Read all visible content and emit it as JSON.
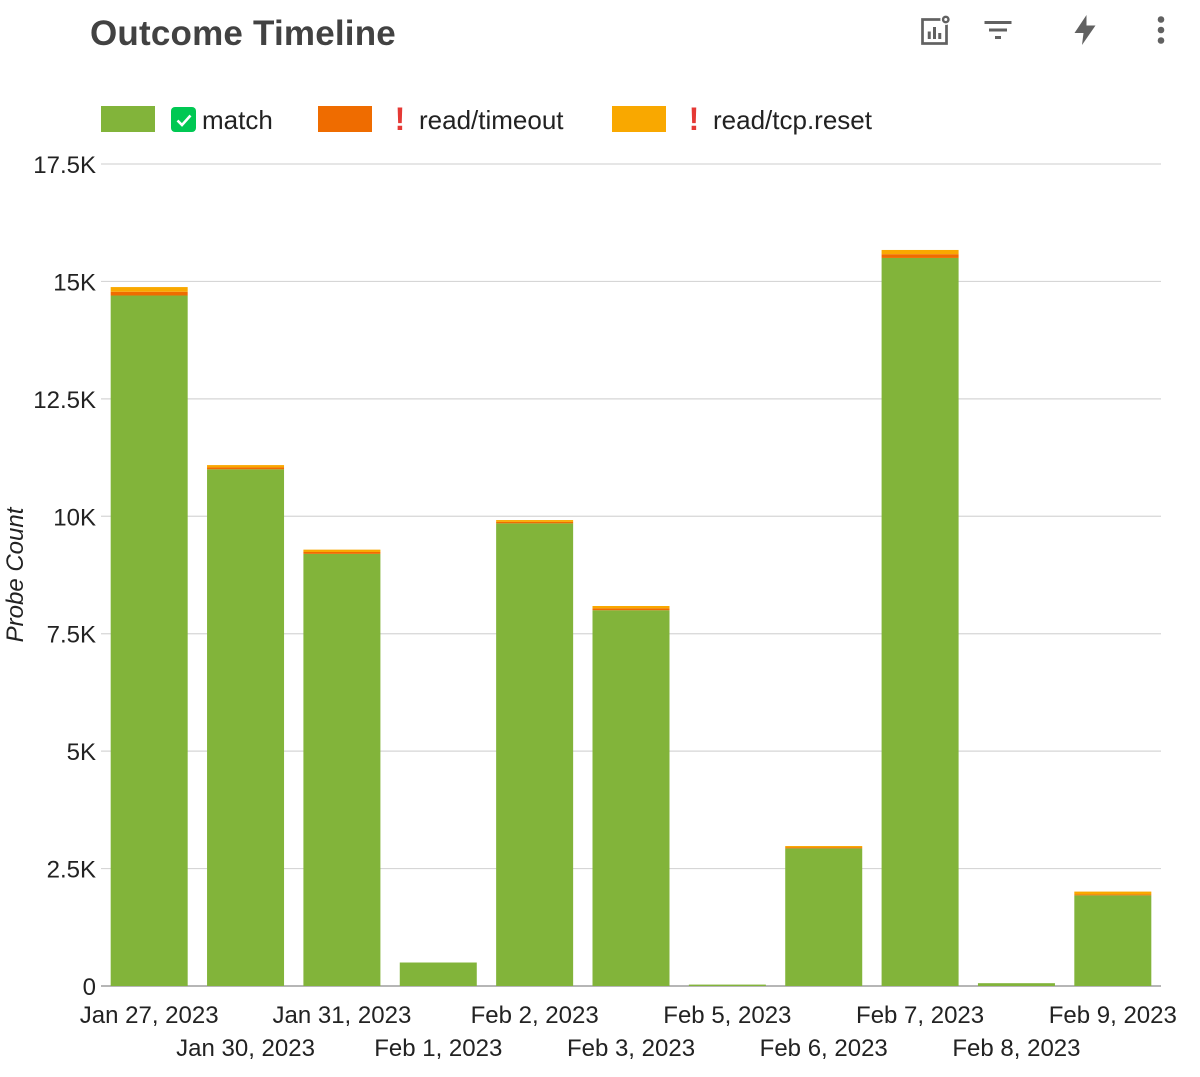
{
  "header": {
    "title": "Outcome Timeline",
    "toolbar": [
      {
        "name": "chart-settings-icon"
      },
      {
        "name": "filter-icon"
      },
      {
        "name": "lightning-icon"
      },
      {
        "name": "more-vertical-icon"
      }
    ]
  },
  "legend": [
    {
      "label": "match",
      "marker": "check-icon",
      "color": "#82b43a"
    },
    {
      "label": "read/timeout",
      "marker": "exclamation-icon",
      "color": "#ef6c00"
    },
    {
      "label": "read/tcp.reset",
      "marker": "exclamation-icon",
      "color": "#f9a800"
    }
  ],
  "chart_data": {
    "type": "bar",
    "stacked": true,
    "title": "Outcome Timeline",
    "xlabel": "",
    "ylabel": "Probe Count",
    "ylim": [
      0,
      17500
    ],
    "yticks": [
      {
        "value": 0,
        "label": "0"
      },
      {
        "value": 2500,
        "label": "2.5K"
      },
      {
        "value": 5000,
        "label": "5K"
      },
      {
        "value": 7500,
        "label": "7.5K"
      },
      {
        "value": 10000,
        "label": "10K"
      },
      {
        "value": 12500,
        "label": "12.5K"
      },
      {
        "value": 15000,
        "label": "15K"
      },
      {
        "value": 17500,
        "label": "17.5K"
      }
    ],
    "grid": true,
    "legend_position": "top-left",
    "categories": [
      "Jan 27, 2023",
      "Jan 30, 2023",
      "Jan 31, 2023",
      "Feb 1, 2023",
      "Feb 2, 2023",
      "Feb 3, 2023",
      "Feb 5, 2023",
      "Feb 6, 2023",
      "Feb 7, 2023",
      "Feb 8, 2023",
      "Feb 9, 2023"
    ],
    "series": [
      {
        "name": "match",
        "color": "#82b43a",
        "values": [
          14700,
          11000,
          9200,
          500,
          9850,
          8000,
          30,
          2930,
          15500,
          60,
          1930
        ]
      },
      {
        "name": "read/timeout",
        "color": "#ef6c00",
        "values": [
          80,
          40,
          40,
          0,
          30,
          40,
          0,
          20,
          80,
          0,
          20
        ]
      },
      {
        "name": "read/tcp.reset",
        "color": "#f9a800",
        "values": [
          100,
          50,
          50,
          0,
          40,
          50,
          0,
          30,
          90,
          0,
          60
        ]
      }
    ]
  }
}
